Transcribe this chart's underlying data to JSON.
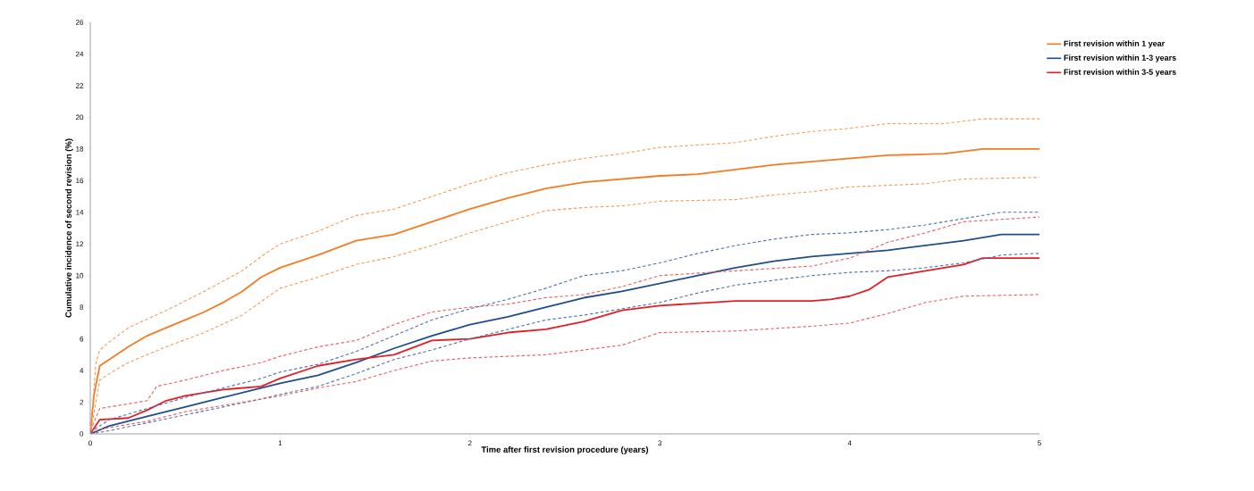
{
  "chart_data": {
    "type": "line",
    "xlabel": "Time after first revision procedure (years)",
    "ylabel": "Cumulative incidence of second revision (%)",
    "xlim": [
      0,
      5
    ],
    "ylim": [
      0,
      26
    ],
    "xticks": [
      0,
      1,
      2,
      3,
      4,
      5
    ],
    "yticks": [
      0,
      2,
      4,
      6,
      8,
      10,
      12,
      14,
      16,
      18,
      20,
      22,
      24,
      26
    ],
    "grid": false,
    "legend": "top right",
    "marker": "none",
    "line_style": "solid",
    "series": [
      {
        "name": "First revision within 1 year",
        "color": "#f47b20",
        "x": [
          0,
          0.02,
          0.05,
          0.1,
          0.2,
          0.3,
          0.4,
          0.5,
          0.6,
          0.7,
          0.8,
          0.9,
          1.0,
          1.2,
          1.4,
          1.6,
          1.8,
          2.0,
          2.2,
          2.4,
          2.6,
          2.8,
          3.0,
          3.2,
          3.4,
          3.6,
          3.8,
          4.0,
          4.2,
          4.5,
          4.7,
          5
        ],
        "values": [
          0,
          2.5,
          4.3,
          4.7,
          5.5,
          6.2,
          6.7,
          7.2,
          7.7,
          8.3,
          9.0,
          9.9,
          10.5,
          11.3,
          12.2,
          12.6,
          13.4,
          14.2,
          14.9,
          15.5,
          15.9,
          16.1,
          16.3,
          16.4,
          16.7,
          17.0,
          17.2,
          17.4,
          17.6,
          17.7,
          18.0,
          18.0
        ]
      },
      {
        "name": "First revision within 1-3 years",
        "color": "#1f4e8c",
        "x": [
          0,
          0.1,
          0.3,
          0.5,
          0.7,
          0.9,
          1.0,
          1.2,
          1.4,
          1.6,
          1.8,
          2.0,
          2.2,
          2.4,
          2.6,
          2.8,
          3.0,
          3.2,
          3.4,
          3.6,
          3.8,
          4.0,
          4.2,
          4.4,
          4.6,
          4.8,
          5
        ],
        "values": [
          0,
          0.5,
          1.1,
          1.7,
          2.3,
          2.9,
          3.2,
          3.7,
          4.5,
          5.4,
          6.2,
          6.9,
          7.4,
          8.0,
          8.6,
          9.0,
          9.5,
          10.0,
          10.5,
          10.9,
          11.2,
          11.4,
          11.6,
          11.9,
          12.2,
          12.6,
          12.6
        ]
      },
      {
        "name": "First revision within 3-5 years",
        "color": "#e31e24",
        "x": [
          0,
          0.05,
          0.2,
          0.3,
          0.4,
          0.5,
          0.7,
          0.9,
          1.0,
          1.2,
          1.4,
          1.6,
          1.8,
          2.0,
          2.2,
          2.4,
          2.6,
          2.8,
          3.0,
          3.4,
          3.8,
          3.9,
          4.0,
          4.1,
          4.2,
          4.4,
          4.6,
          4.7,
          5
        ],
        "values": [
          0,
          0.9,
          1.0,
          1.5,
          2.1,
          2.4,
          2.8,
          3.0,
          3.5,
          4.3,
          4.7,
          5.0,
          5.9,
          6.0,
          6.4,
          6.6,
          7.1,
          7.8,
          8.1,
          8.4,
          8.4,
          8.5,
          8.7,
          9.1,
          9.9,
          10.3,
          10.7,
          11.1,
          11.1
        ]
      },
      {
        "color": "#f79a55",
        "line_style": "dashed",
        "x": [
          0,
          0.03,
          0.05,
          0.1,
          0.2,
          0.4,
          0.6,
          0.8,
          0.9,
          1.0,
          1.2,
          1.4,
          1.6,
          1.8,
          2.0,
          2.2,
          2.4,
          2.6,
          2.8,
          3.0,
          3.4,
          3.6,
          3.8,
          4.0,
          4.2,
          4.5,
          4.7,
          5
        ],
        "values": [
          0,
          4.5,
          5.3,
          5.8,
          6.7,
          7.8,
          9.0,
          10.3,
          11.2,
          12.0,
          12.8,
          13.8,
          14.2,
          15.0,
          15.8,
          16.5,
          17.0,
          17.4,
          17.7,
          18.1,
          18.4,
          18.8,
          19.1,
          19.3,
          19.6,
          19.6,
          19.9,
          19.9
        ]
      },
      {
        "color": "#f79a55",
        "line_style": "dashed",
        "x": [
          0,
          0.03,
          0.05,
          0.1,
          0.2,
          0.4,
          0.6,
          0.8,
          1.0,
          1.2,
          1.4,
          1.6,
          1.8,
          2.0,
          2.2,
          2.4,
          2.6,
          2.8,
          3.0,
          3.4,
          3.6,
          3.8,
          4.0,
          4.4,
          4.6,
          5
        ],
        "values": [
          0,
          2.0,
          3.4,
          3.8,
          4.5,
          5.5,
          6.4,
          7.5,
          9.2,
          9.9,
          10.7,
          11.2,
          11.9,
          12.7,
          13.4,
          14.1,
          14.3,
          14.4,
          14.7,
          14.8,
          15.1,
          15.3,
          15.6,
          15.8,
          16.1,
          16.2
        ]
      },
      {
        "color": "#4a73a8",
        "line_style": "dashed",
        "x": [
          0,
          0.1,
          0.3,
          0.5,
          0.7,
          0.9,
          1.0,
          1.2,
          1.4,
          1.6,
          1.8,
          2.0,
          2.2,
          2.4,
          2.6,
          2.8,
          3.0,
          3.2,
          3.4,
          3.6,
          3.8,
          4.0,
          4.2,
          4.4,
          4.6,
          4.8,
          5
        ],
        "values": [
          0.1,
          0.9,
          1.6,
          2.3,
          2.9,
          3.5,
          3.9,
          4.4,
          5.2,
          6.2,
          7.2,
          7.9,
          8.5,
          9.2,
          10.0,
          10.3,
          10.8,
          11.4,
          11.9,
          12.3,
          12.6,
          12.7,
          12.9,
          13.2,
          13.6,
          14.0,
          14.0
        ]
      },
      {
        "color": "#4a73a8",
        "line_style": "dashed",
        "x": [
          0,
          0.1,
          0.3,
          0.5,
          0.7,
          0.9,
          1.0,
          1.2,
          1.4,
          1.6,
          1.8,
          2.0,
          2.2,
          2.4,
          2.6,
          2.8,
          3.0,
          3.2,
          3.4,
          3.6,
          3.8,
          4.0,
          4.2,
          4.4,
          4.6,
          4.8,
          5
        ],
        "values": [
          0,
          0.2,
          0.7,
          1.2,
          1.7,
          2.2,
          2.5,
          3.0,
          3.8,
          4.7,
          5.3,
          6.0,
          6.6,
          7.2,
          7.5,
          7.9,
          8.3,
          8.9,
          9.4,
          9.7,
          10.0,
          10.2,
          10.3,
          10.5,
          10.8,
          11.3,
          11.4
        ]
      },
      {
        "color": "#ec5a5f",
        "line_style": "dashed",
        "x": [
          0,
          0.05,
          0.3,
          0.35,
          0.5,
          0.7,
          0.9,
          1.0,
          1.2,
          1.4,
          1.6,
          1.8,
          2.0,
          2.2,
          2.4,
          2.6,
          2.8,
          3.0,
          3.4,
          3.8,
          4.0,
          4.2,
          4.4,
          4.6,
          5
        ],
        "values": [
          0.2,
          1.6,
          2.1,
          3.0,
          3.4,
          4.0,
          4.5,
          4.9,
          5.5,
          5.9,
          6.9,
          7.7,
          8.0,
          8.2,
          8.6,
          8.8,
          9.3,
          10.0,
          10.3,
          10.6,
          11.1,
          12.1,
          12.7,
          13.4,
          13.7
        ]
      },
      {
        "color": "#ec5a5f",
        "line_style": "dashed",
        "x": [
          0,
          0.05,
          0.3,
          0.5,
          0.8,
          1.0,
          1.2,
          1.4,
          1.6,
          1.8,
          2.0,
          2.4,
          2.8,
          3.0,
          3.4,
          3.8,
          4.0,
          4.2,
          4.4,
          4.6,
          5
        ],
        "values": [
          0,
          0.3,
          0.8,
          1.4,
          2.0,
          2.4,
          2.9,
          3.3,
          4.0,
          4.6,
          4.8,
          5.0,
          5.6,
          6.4,
          6.5,
          6.8,
          7.0,
          7.6,
          8.3,
          8.7,
          8.8
        ]
      }
    ]
  }
}
